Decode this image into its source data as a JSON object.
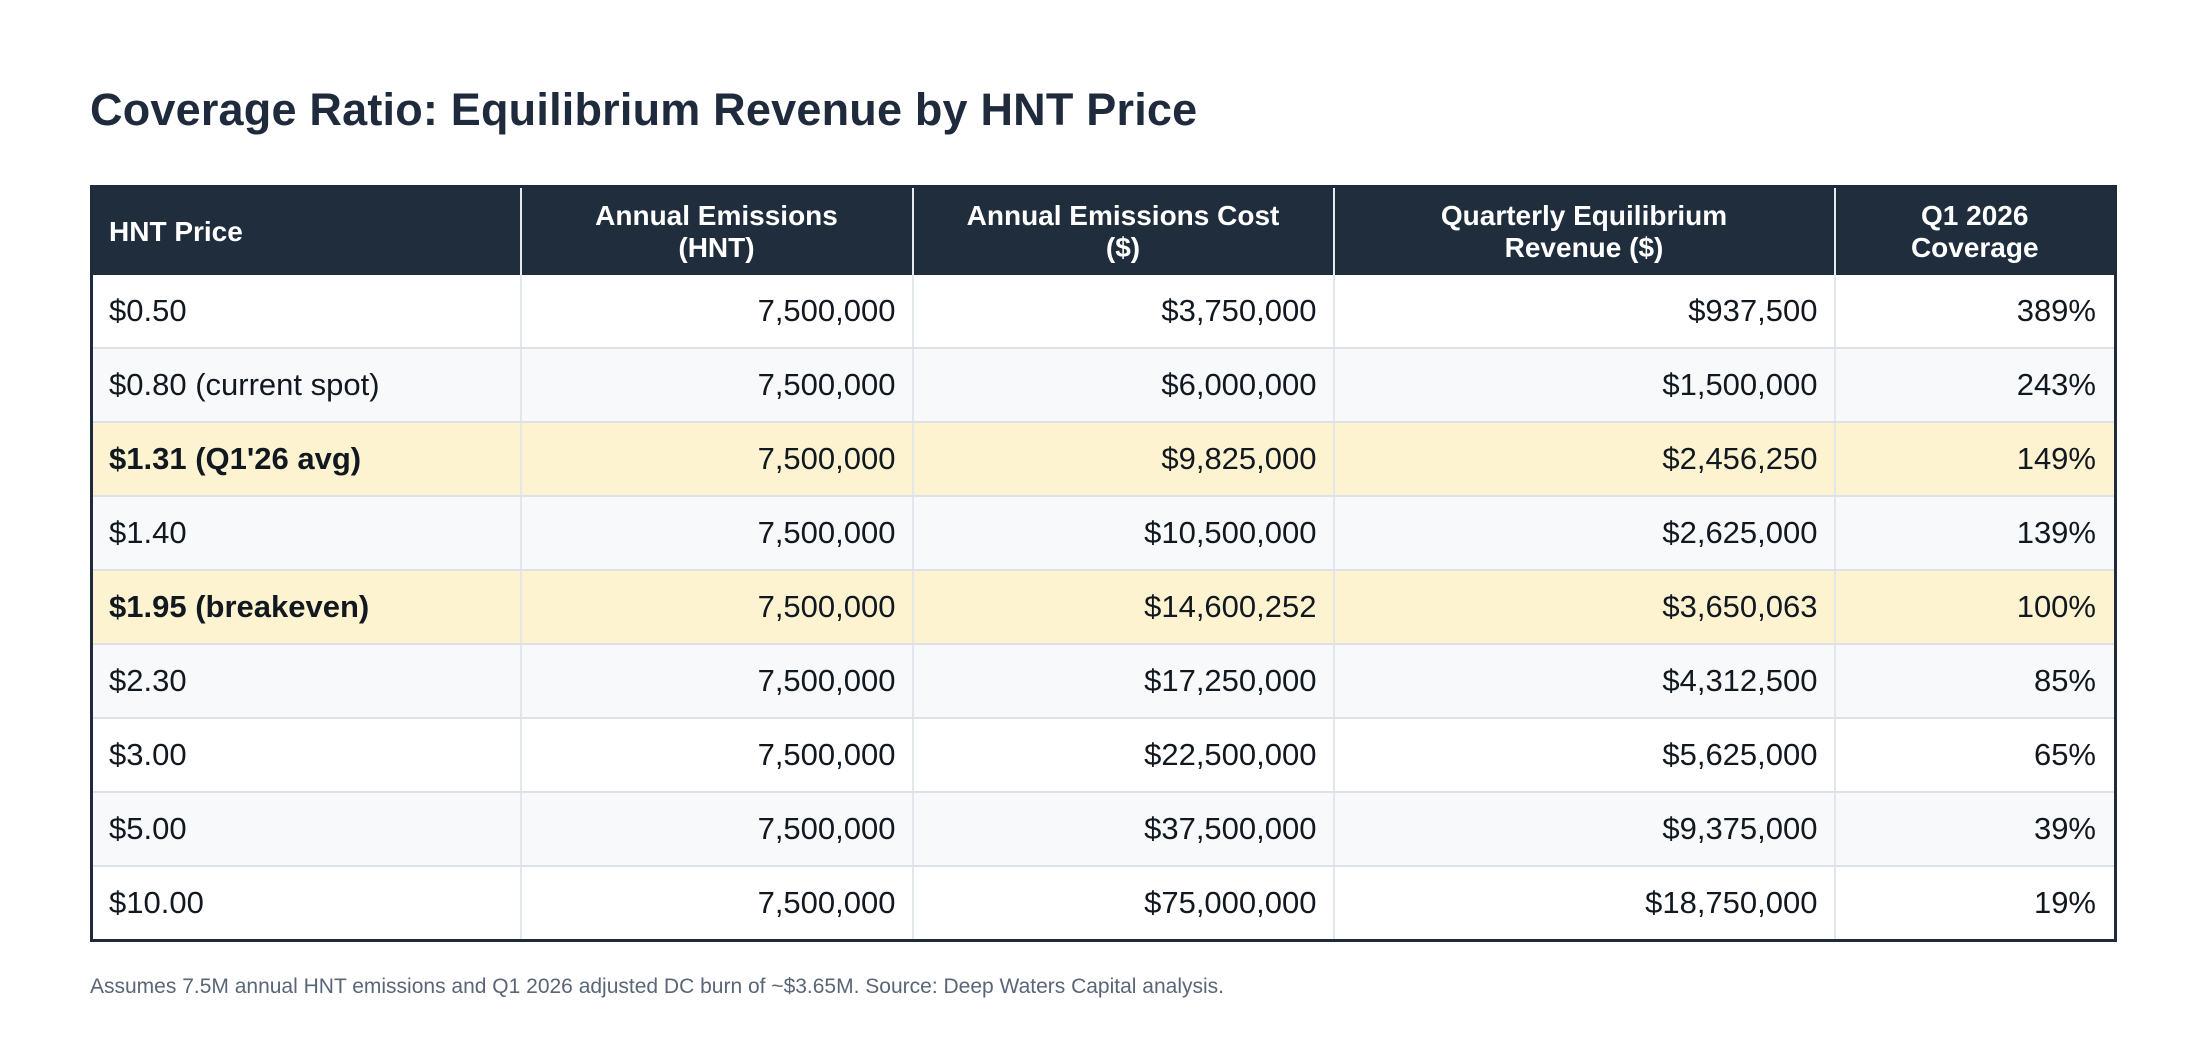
{
  "title": "Coverage Ratio: Equilibrium Revenue by HNT Price",
  "table": {
    "headers": [
      [
        "HNT Price"
      ],
      [
        "Annual Emissions",
        "(HNT)"
      ],
      [
        "Annual Emissions Cost",
        "($)"
      ],
      [
        "Quarterly Equilibrium",
        "Revenue ($)"
      ],
      [
        "Q1 2026",
        "Coverage"
      ]
    ],
    "rows": [
      {
        "highlight": false,
        "cells": [
          "$0.50",
          "7,500,000",
          "$3,750,000",
          "$937,500",
          "389%"
        ]
      },
      {
        "highlight": false,
        "cells": [
          "$0.80 (current spot)",
          "7,500,000",
          "$6,000,000",
          "$1,500,000",
          "243%"
        ]
      },
      {
        "highlight": true,
        "cells": [
          "$1.31 (Q1'26 avg)",
          "7,500,000",
          "$9,825,000",
          "$2,456,250",
          "149%"
        ]
      },
      {
        "highlight": false,
        "cells": [
          "$1.40",
          "7,500,000",
          "$10,500,000",
          "$2,625,000",
          "139%"
        ]
      },
      {
        "highlight": true,
        "cells": [
          "$1.95 (breakeven)",
          "7,500,000",
          "$14,600,252",
          "$3,650,063",
          "100%"
        ]
      },
      {
        "highlight": false,
        "cells": [
          "$2.30",
          "7,500,000",
          "$17,250,000",
          "$4,312,500",
          "85%"
        ]
      },
      {
        "highlight": false,
        "cells": [
          "$3.00",
          "7,500,000",
          "$22,500,000",
          "$5,625,000",
          "65%"
        ]
      },
      {
        "highlight": false,
        "cells": [
          "$5.00",
          "7,500,000",
          "$37,500,000",
          "$9,375,000",
          "39%"
        ]
      },
      {
        "highlight": false,
        "cells": [
          "$10.00",
          "7,500,000",
          "$75,000,000",
          "$18,750,000",
          "19%"
        ]
      }
    ]
  },
  "footnote": "Assumes 7.5M annual HNT emissions and Q1 2026 adjusted DC burn of ~$3.65M. Source: Deep Waters Capital analysis.",
  "colors": {
    "header_bg": "#1f2d3d",
    "highlight_bg": "#fdf3d0",
    "alt_row_bg": "#f7f9fb"
  }
}
